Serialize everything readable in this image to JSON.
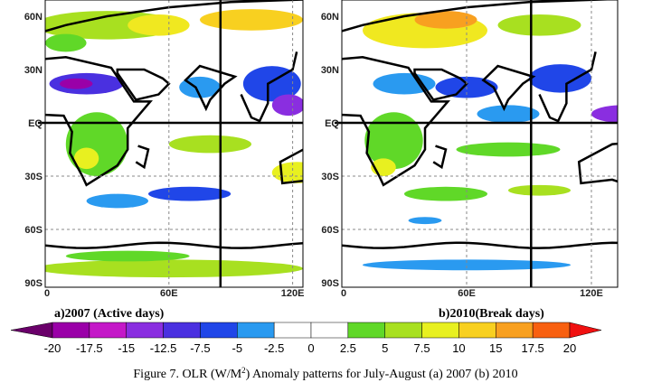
{
  "panels": [
    {
      "lat_labels": [
        "60N",
        "30N",
        "EQ",
        "30S",
        "60S",
        "90S"
      ],
      "lon_labels": [
        "0",
        "60E",
        "120E"
      ],
      "caption": "a)2007 (Active days)"
    },
    {
      "lat_labels": [
        "60N",
        "30N",
        "EQ",
        "30S",
        "60S",
        "90S"
      ],
      "lon_labels": [
        "0",
        "60E",
        "120E"
      ],
      "caption": "b)2010(Break days)"
    }
  ],
  "colorbar": {
    "labels": [
      "-20",
      "-17.5",
      "-15",
      "-12.5",
      "-7.5",
      "-5",
      "-2.5",
      "0",
      "2.5",
      "5",
      "7.5",
      "10",
      "15",
      "17.5",
      "20"
    ],
    "colors": [
      "#6a006a",
      "#9a00a8",
      "#c418c8",
      "#8a2ee0",
      "#4a30e0",
      "#2046e8",
      "#2a9af0",
      "#ffffff",
      "#ffffff",
      "#60d828",
      "#a8e020",
      "#e8f020",
      "#f8d020",
      "#f8a020",
      "#f86010",
      "#f01010"
    ]
  },
  "caption": {
    "before": "Figure 7. OLR (W/M",
    "sup": "2",
    "after": ") Anomaly patterns for July-August (a) 2007 (b) 2010"
  }
}
